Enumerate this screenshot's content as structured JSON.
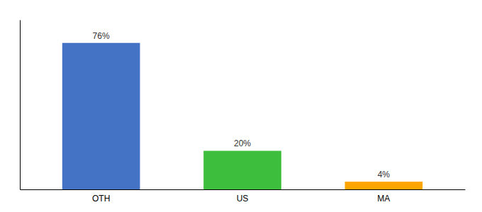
{
  "chart_data": {
    "type": "bar",
    "categories": [
      "OTH",
      "US",
      "MA"
    ],
    "values": [
      76,
      20,
      4
    ],
    "colors": [
      "#4472C4",
      "#3DBF3D",
      "#FFA500"
    ],
    "data_labels": true,
    "value_labels": [
      "76%",
      "20%",
      "4%"
    ],
    "ylim": [
      0,
      88
    ],
    "tick_labels": "x"
  }
}
